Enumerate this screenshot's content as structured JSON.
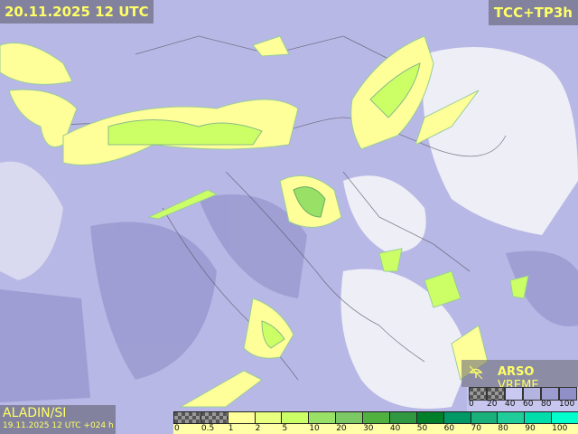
{
  "header": {
    "valid_time": "20.11.2025 12 UTC",
    "product": "TCC+TP3h"
  },
  "model": {
    "name": "ALADIN/SI",
    "run": "19.11.2025 12 UTC +024 h"
  },
  "brand": {
    "bold": "ARSO",
    "light": " VREME",
    "icon": "weather-umbrella-icon"
  },
  "cloud_legend": {
    "labels": [
      "0",
      "20",
      "40",
      "60",
      "80",
      "100"
    ],
    "colors": [
      "checker",
      "checker",
      "#c8c8f0",
      "#b4b4e0",
      "#9c9cd0",
      "#9090c8"
    ]
  },
  "precip_legend": {
    "labels": [
      "0",
      "0.5",
      "1",
      "2",
      "5",
      "10",
      "20",
      "30",
      "40",
      "50",
      "60",
      "70",
      "80",
      "90",
      "100"
    ],
    "colors": [
      "checker",
      "checker",
      "#ffff99",
      "#e8ff80",
      "#ccff66",
      "#99e066",
      "#7cc864",
      "#50b040",
      "#309840",
      "#007f2a",
      "#009966",
      "#1ab07a",
      "#20cc99",
      "#00ddaa",
      "#00ffcc"
    ]
  }
}
